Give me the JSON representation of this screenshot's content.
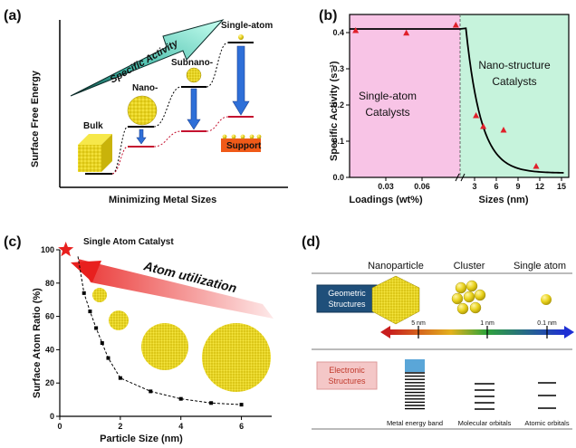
{
  "panels": {
    "a": {
      "label": "(a)",
      "ylabel": "Surface Free Energy",
      "xlabel": "Minimizing Metal Sizes",
      "arrow_label": "Specific Activity",
      "levels": [
        "Bulk",
        "Nano-",
        "Subnano-",
        "Single-atom"
      ],
      "support_label": "Support"
    },
    "b": {
      "label": "(b)",
      "ylabel": "Specific Activity (s⁻¹)",
      "xlabel_left": "Loadings (wt%)",
      "xlabel_right": "Sizes (nm)",
      "region_left_line1": "Single-atom",
      "region_left_line2": "Catalysts",
      "region_right_line1": "Nano-structure",
      "region_right_line2": "Catalysts",
      "colors": {
        "left": "#f8c4e6",
        "right": "#c6f3dc",
        "points": "#e0202a"
      }
    },
    "c": {
      "label": "(c)",
      "ylabel": "Surface Atom Ratio (%)",
      "xlabel": "Particle Size (nm)",
      "star_label": "Single Atom Catalyst",
      "arrow_label": "Atom utilization"
    },
    "d": {
      "label": "(d)",
      "columns": [
        "Nanoparticle",
        "Cluster",
        "Single atom"
      ],
      "row1": "Geometric\nStructures",
      "row2": "Electronic\nStructures",
      "scale_ticks": [
        "5 nm",
        "1 nm",
        "0.1 nm"
      ],
      "bottom_labels": [
        "Metal energy band",
        "Molecular orbitals",
        "Atomic orbitals"
      ]
    }
  },
  "chart_data": [
    {
      "type": "scatter",
      "panel": "b",
      "ylabel": "Specific Activity (s⁻¹)",
      "ylim": [
        0,
        0.45
      ],
      "yticks": [
        0.0,
        0.1,
        0.2,
        0.3,
        0.4
      ],
      "left_segment": {
        "xlabel": "Loadings (wt%)",
        "xlim": [
          0,
          0.09
        ],
        "xticks": [
          0.03,
          0.06
        ],
        "points": [
          {
            "x": 0.005,
            "y": 0.405
          },
          {
            "x": 0.047,
            "y": 0.398
          },
          {
            "x": 0.088,
            "y": 0.42
          }
        ],
        "fit_y": 0.41
      },
      "right_segment": {
        "xlabel": "Sizes (nm)",
        "xlim": [
          1.5,
          16
        ],
        "xticks": [
          3,
          6,
          9,
          12,
          15
        ],
        "points": [
          {
            "x": 3.2,
            "y": 0.17
          },
          {
            "x": 4.2,
            "y": 0.14
          },
          {
            "x": 7,
            "y": 0.13
          },
          {
            "x": 11.5,
            "y": 0.03
          }
        ]
      }
    },
    {
      "type": "line",
      "panel": "c",
      "xlabel": "Particle Size (nm)",
      "ylabel": "Surface Atom Ratio (%)",
      "xlim": [
        0,
        7
      ],
      "ylim": [
        0,
        100
      ],
      "xticks": [
        0,
        2,
        4,
        6
      ],
      "yticks": [
        0,
        20,
        40,
        60,
        80,
        100
      ],
      "star": {
        "x": 0.2,
        "y": 100
      },
      "points": [
        {
          "x": 0.8,
          "y": 74
        },
        {
          "x": 1.0,
          "y": 63
        },
        {
          "x": 1.2,
          "y": 53
        },
        {
          "x": 1.4,
          "y": 44
        },
        {
          "x": 1.6,
          "y": 35
        },
        {
          "x": 2.0,
          "y": 23
        },
        {
          "x": 3.0,
          "y": 15
        },
        {
          "x": 4.0,
          "y": 10.5
        },
        {
          "x": 5.0,
          "y": 8
        },
        {
          "x": 6.0,
          "y": 7
        }
      ]
    }
  ]
}
